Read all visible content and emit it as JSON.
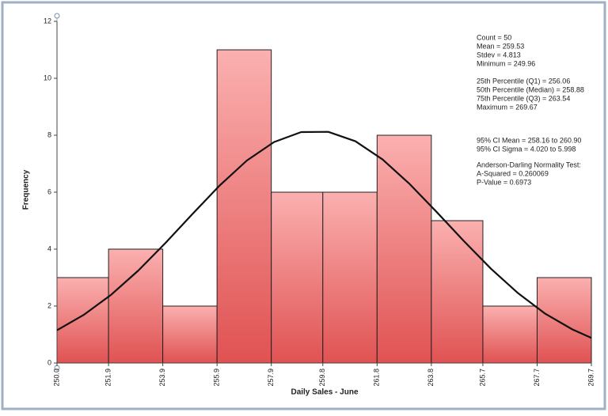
{
  "chart_data": {
    "type": "histogram",
    "xlabel": "Daily Sales - June",
    "ylabel": "Frequency",
    "bins": [
      250.0,
      251.9,
      253.9,
      255.9,
      257.9,
      259.8,
      261.8,
      263.8,
      265.7,
      267.7,
      269.7
    ],
    "counts": [
      3,
      4,
      2,
      11,
      6,
      6,
      8,
      5,
      2,
      3
    ],
    "color": "#e85a5a",
    "xlim": [
      250.0,
      269.7
    ],
    "xticks": [
      {
        "value": 250.0,
        "label": "250.0"
      },
      251.9,
      253.9,
      255.9,
      257.9,
      259.8,
      261.8,
      263.8,
      265.7,
      267.7,
      269.7
    ],
    "ylim": [
      0,
      12
    ],
    "yticks": [
      0,
      2,
      4,
      6,
      8,
      10,
      12
    ],
    "curve": {
      "color": "#111111",
      "x": [
        250,
        251,
        252,
        253,
        254,
        255,
        256,
        257,
        258,
        259,
        260,
        261,
        262,
        263,
        264,
        265,
        266,
        267,
        268,
        269,
        269.7
      ],
      "values": [
        1.15,
        1.7,
        2.4,
        3.25,
        4.22,
        5.24,
        6.24,
        7.11,
        7.76,
        8.11,
        8.12,
        7.79,
        7.15,
        6.29,
        5.3,
        4.28,
        3.31,
        2.45,
        1.73,
        1.18,
        0.88
      ]
    },
    "annotations": [
      [
        "Count = 50",
        "Mean = 259.53",
        "Stdev = 4.813",
        "Minimum = 249.96"
      ],
      [
        "25th Percentile (Q1) = 256.06",
        "50th Percentile (Median) = 258.88",
        "75th Percentile (Q3) = 263.54",
        "Maximum = 269.67"
      ],
      [
        "95% CI Mean = 258.16 to 260.90",
        "95% CI Sigma = 4.020 to 5.998"
      ],
      [
        "Anderson-Darling Normality Test:",
        "A-Squared = 0.260069",
        "P-Value = 0.6973"
      ]
    ]
  }
}
